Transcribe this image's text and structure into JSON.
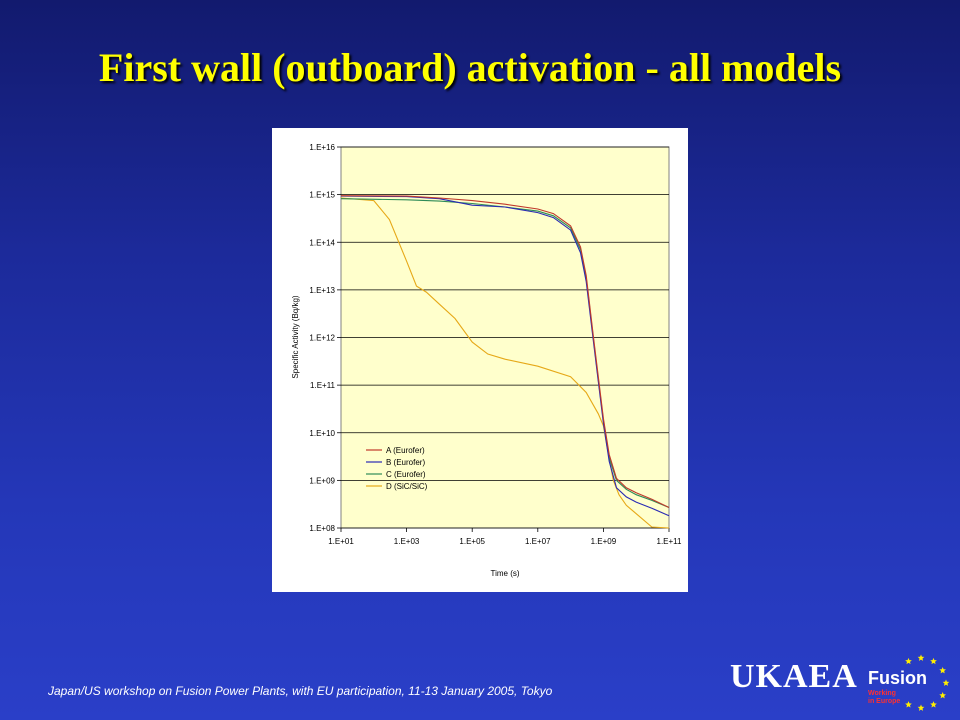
{
  "slide": {
    "title": "First wall (outboard) activation - all models",
    "footer": "Japan/US workshop on Fusion Power Plants, with EU participation, 11-13 January 2005, Tokyo"
  },
  "logo": {
    "org": "UKAEA",
    "program": "Fusion",
    "tagline_1": "Working",
    "tagline_2": "in Europe",
    "star_color": "#ffee00"
  },
  "colors": {
    "plot_background": "#ffffcc",
    "background": "#1c2a9a",
    "title": "#ffff00"
  },
  "chart_data": {
    "type": "line",
    "title": "",
    "xlabel": "Time (s)",
    "ylabel": "Specific Activity (Bq/kg)",
    "x_scale": "log",
    "y_scale": "log",
    "xlim": [
      10,
      100000000000
    ],
    "ylim": [
      100000000,
      10000000000000000
    ],
    "x_ticks": [
      {
        "value": 10,
        "label": "1.E+01"
      },
      {
        "value": 1000,
        "label": "1.E+03"
      },
      {
        "value": 100000,
        "label": "1.E+05"
      },
      {
        "value": 10000000,
        "label": "1.E+07"
      },
      {
        "value": 1000000000,
        "label": "1.E+09"
      },
      {
        "value": 100000000000,
        "label": "1.E+11"
      }
    ],
    "y_ticks": [
      {
        "value": 100000000,
        "label": "1.E+08"
      },
      {
        "value": 1000000000,
        "label": "1.E+09"
      },
      {
        "value": 10000000000,
        "label": "1.E+10"
      },
      {
        "value": 100000000000,
        "label": "1.E+11"
      },
      {
        "value": 1000000000000,
        "label": "1.E+12"
      },
      {
        "value": 10000000000000,
        "label": "1.E+13"
      },
      {
        "value": 100000000000000,
        "label": "1.E+14"
      },
      {
        "value": 1000000000000000,
        "label": "1.E+15"
      },
      {
        "value": 10000000000000000,
        "label": "1.E+16"
      }
    ],
    "grid": "horizontal",
    "legend_position": "lower-left",
    "series": [
      {
        "name": "A (Eurofer)",
        "color": "#c0392b",
        "points": [
          [
            10,
            950000000000000.0
          ],
          [
            1000,
            930000000000000.0
          ],
          [
            10000,
            850000000000000.0
          ],
          [
            100000,
            750000000000000.0
          ],
          [
            1000000,
            630000000000000.0
          ],
          [
            10000000,
            500000000000000.0
          ],
          [
            30000000,
            400000000000000.0
          ],
          [
            100000000,
            220000000000000.0
          ],
          [
            200000000,
            80000000000000.0
          ],
          [
            300000000,
            20000000000000.0
          ],
          [
            500000000,
            1000000000000.0
          ],
          [
            700000000,
            150000000000.0
          ],
          [
            1000000000,
            20000000000.0
          ],
          [
            1500000000,
            3500000000.0
          ],
          [
            2500000000,
            1100000000.0
          ],
          [
            5000000000,
            700000000.0
          ],
          [
            10000000000,
            550000000.0
          ],
          [
            30000000000,
            400000000.0
          ],
          [
            100000000000,
            270000000.0
          ]
        ]
      },
      {
        "name": "B (Eurofer)",
        "color": "#2a2ab4",
        "points": [
          [
            10,
            930000000000000.0
          ],
          [
            1000,
            910000000000000.0
          ],
          [
            10000,
            820000000000000.0
          ],
          [
            100000,
            600000000000000.0
          ],
          [
            1000000,
            550000000000000.0
          ],
          [
            10000000,
            420000000000000.0
          ],
          [
            30000000,
            330000000000000.0
          ],
          [
            100000000,
            180000000000000.0
          ],
          [
            200000000,
            60000000000000.0
          ],
          [
            300000000,
            15000000000000.0
          ],
          [
            500000000,
            800000000000.0
          ],
          [
            700000000,
            120000000000.0
          ],
          [
            1000000000,
            16000000000.0
          ],
          [
            1500000000,
            2500000000.0
          ],
          [
            2500000000,
            700000000.0
          ],
          [
            5000000000,
            450000000.0
          ],
          [
            10000000000,
            350000000.0
          ],
          [
            30000000000,
            260000000.0
          ],
          [
            100000000000,
            180000000.0
          ]
        ]
      },
      {
        "name": "C (Eurofer)",
        "color": "#2e8b57",
        "points": [
          [
            10,
            820000000000000.0
          ],
          [
            1000,
            780000000000000.0
          ],
          [
            10000,
            730000000000000.0
          ],
          [
            100000,
            650000000000000.0
          ],
          [
            1000000,
            550000000000000.0
          ],
          [
            10000000,
            450000000000000.0
          ],
          [
            30000000,
            360000000000000.0
          ],
          [
            100000000,
            200000000000000.0
          ],
          [
            200000000,
            70000000000000.0
          ],
          [
            300000000,
            18000000000000.0
          ],
          [
            500000000,
            900000000000.0
          ],
          [
            700000000,
            130000000000.0
          ],
          [
            1000000000,
            18000000000.0
          ],
          [
            1500000000,
            3000000000.0
          ],
          [
            2500000000,
            1000000000.0
          ],
          [
            5000000000,
            650000000.0
          ],
          [
            10000000000,
            500000000.0
          ],
          [
            30000000000,
            380000000.0
          ],
          [
            100000000000,
            270000000.0
          ]
        ]
      },
      {
        "name": "D (SiC/SiC)",
        "color": "#e6a817",
        "points": [
          [
            10,
            850000000000000.0
          ],
          [
            100,
            750000000000000.0
          ],
          [
            300,
            300000000000000.0
          ],
          [
            1000,
            40000000000000.0
          ],
          [
            2000,
            12000000000000.0
          ],
          [
            4000,
            9000000000000.0
          ],
          [
            10000,
            5000000000000.0
          ],
          [
            30000,
            2500000000000.0
          ],
          [
            100000,
            800000000000.0
          ],
          [
            300000,
            450000000000.0
          ],
          [
            1000000,
            350000000000.0
          ],
          [
            10000000,
            250000000000.0
          ],
          [
            100000000,
            150000000000.0
          ],
          [
            300000000,
            70000000000.0
          ],
          [
            700000000,
            25000000000.0
          ],
          [
            1000000000,
            14000000000.0
          ],
          [
            1300000000,
            5000000000.0
          ],
          [
            2000000000,
            1000000000.0
          ],
          [
            3000000000,
            500000000.0
          ],
          [
            5000000000,
            300000000.0
          ],
          [
            10000000000,
            200000000.0
          ],
          [
            30000000000,
            105000000.0
          ],
          [
            100000000000,
            100000000.0
          ]
        ]
      }
    ]
  }
}
